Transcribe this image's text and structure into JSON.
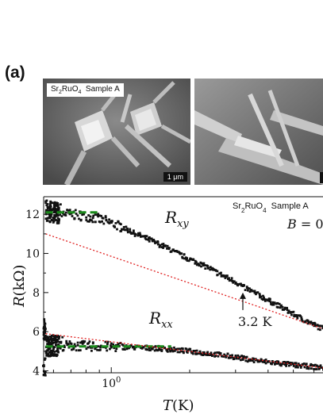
{
  "panel_label": "(a)",
  "images": {
    "left_label": "Sr2RuO4  Sample A",
    "left_scale": "1 μm",
    "left_desc_icon": "sem-micrograph",
    "right_desc_icon": "sem-micrograph-tilted"
  },
  "chart_data": {
    "type": "scatter",
    "xscale": "log",
    "xlabel": "T(K)",
    "ylabel": "R(kΩ)",
    "x_ticks": [
      {
        "value": 1,
        "label": "10^0"
      }
    ],
    "y_ticks": [
      4,
      6,
      8,
      10,
      12
    ],
    "ylim": [
      3.9,
      12.9
    ],
    "xlim": [
      0.55,
      6.5
    ],
    "annotations": {
      "sample_label": "Sr2RuO4  Sample A",
      "field_label": "B = 0",
      "rxy_label": "R_xy",
      "rxx_label": "R_xx",
      "arrow_label": "3.2 K"
    },
    "series": [
      {
        "name": "R_xy",
        "color": "#111111",
        "points": [
          [
            0.56,
            12.2
          ],
          [
            0.6,
            12.1
          ],
          [
            0.65,
            12.05
          ],
          [
            0.7,
            12.0
          ],
          [
            0.8,
            11.9
          ],
          [
            0.9,
            11.75
          ],
          [
            1.0,
            11.55
          ],
          [
            1.1,
            11.35
          ],
          [
            1.2,
            11.1
          ],
          [
            1.4,
            10.7
          ],
          [
            1.6,
            10.35
          ],
          [
            1.8,
            10.0
          ],
          [
            2.0,
            9.7
          ],
          [
            2.3,
            9.35
          ],
          [
            2.6,
            8.95
          ],
          [
            3.0,
            8.55
          ],
          [
            3.2,
            8.3
          ],
          [
            3.6,
            7.95
          ],
          [
            4.0,
            7.6
          ],
          [
            4.5,
            7.25
          ],
          [
            5.0,
            6.9
          ],
          [
            5.5,
            6.6
          ],
          [
            6.0,
            6.35
          ],
          [
            6.5,
            6.15
          ]
        ]
      },
      {
        "name": "R_xx",
        "color": "#111111",
        "points": [
          [
            0.56,
            5.3
          ],
          [
            0.7,
            5.28
          ],
          [
            0.9,
            5.25
          ],
          [
            1.2,
            5.2
          ],
          [
            1.5,
            5.15
          ],
          [
            2.0,
            5.0
          ],
          [
            2.5,
            4.85
          ],
          [
            3.0,
            4.7
          ],
          [
            3.5,
            4.55
          ],
          [
            4.0,
            4.45
          ],
          [
            5.0,
            4.3
          ],
          [
            6.0,
            4.2
          ],
          [
            6.5,
            4.15
          ]
        ]
      }
    ],
    "fits": [
      {
        "name": "rxy-low-T-fit",
        "color": "#1a8a1a",
        "style": "dashed",
        "points": [
          [
            0.56,
            12.1
          ],
          [
            0.9,
            12.1
          ]
        ]
      },
      {
        "name": "rxy-high-T-fit",
        "color": "#e02020",
        "style": "dotted",
        "points": [
          [
            0.56,
            11.0
          ],
          [
            6.5,
            6.15
          ]
        ]
      },
      {
        "name": "rxx-low-T-fit",
        "color": "#1a8a1a",
        "style": "dashed",
        "points": [
          [
            0.56,
            5.25
          ],
          [
            1.7,
            5.25
          ]
        ]
      },
      {
        "name": "rxx-high-T-fit",
        "color": "#e02020",
        "style": "dotted",
        "points": [
          [
            0.56,
            5.9
          ],
          [
            6.5,
            4.15
          ]
        ]
      }
    ],
    "arrow_at": {
      "x": 3.2,
      "y": 8.0
    }
  }
}
